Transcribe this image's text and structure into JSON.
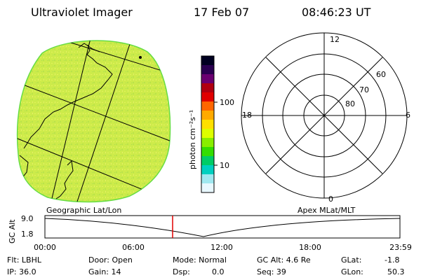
{
  "header": {
    "title": "Ultraviolet Imager",
    "date": "17 Feb 07",
    "time": "08:46:23 UT"
  },
  "colorbar": {
    "unit_label": "photon cm⁻²s⁻¹",
    "ticks": [
      "100",
      "10"
    ],
    "colors_top_to_bottom": [
      "#000020",
      "#2a0050",
      "#6a0070",
      "#b00010",
      "#e00000",
      "#ff6600",
      "#ffaa00",
      "#ffe000",
      "#ddff00",
      "#88ee00",
      "#33dd00",
      "#00cc66",
      "#00d0c0",
      "#a0e8f0",
      "#e8f8ff"
    ]
  },
  "polar_plot": {
    "mlt_labels": {
      "top": "12",
      "right": "6",
      "bottom": "0",
      "left": "18"
    },
    "lat_labels": [
      "60",
      "70",
      "80"
    ]
  },
  "timeline": {
    "ylabel": "GC Alt",
    "ytick_top": "9.0",
    "ytick_bottom": "1.8",
    "left_caption": "Geographic Lat/Lon",
    "right_caption": "Apex MLat/MLT",
    "xticks": [
      "00:00",
      "06:00",
      "12:00",
      "18:00",
      "23:59"
    ],
    "marker_color": "#e00000"
  },
  "info": {
    "flt": "Flt: LBHL",
    "ip": "IP: 36.0",
    "door": "Door: Open",
    "gain": "Gain: 14",
    "mode": "Mode: Normal",
    "dsp_label": "Dsp:",
    "dsp_value": "0.0",
    "gc_alt": "GC Alt: 4.6 Re",
    "seq": "Seq: 39",
    "glat_label": "GLat:",
    "glat_value": "-1.8",
    "glon_label": "GLon:",
    "glon_value": "50.3"
  },
  "colors": {
    "earth_fill": "#cdeb4a",
    "earth_limb": "#66dd44"
  }
}
